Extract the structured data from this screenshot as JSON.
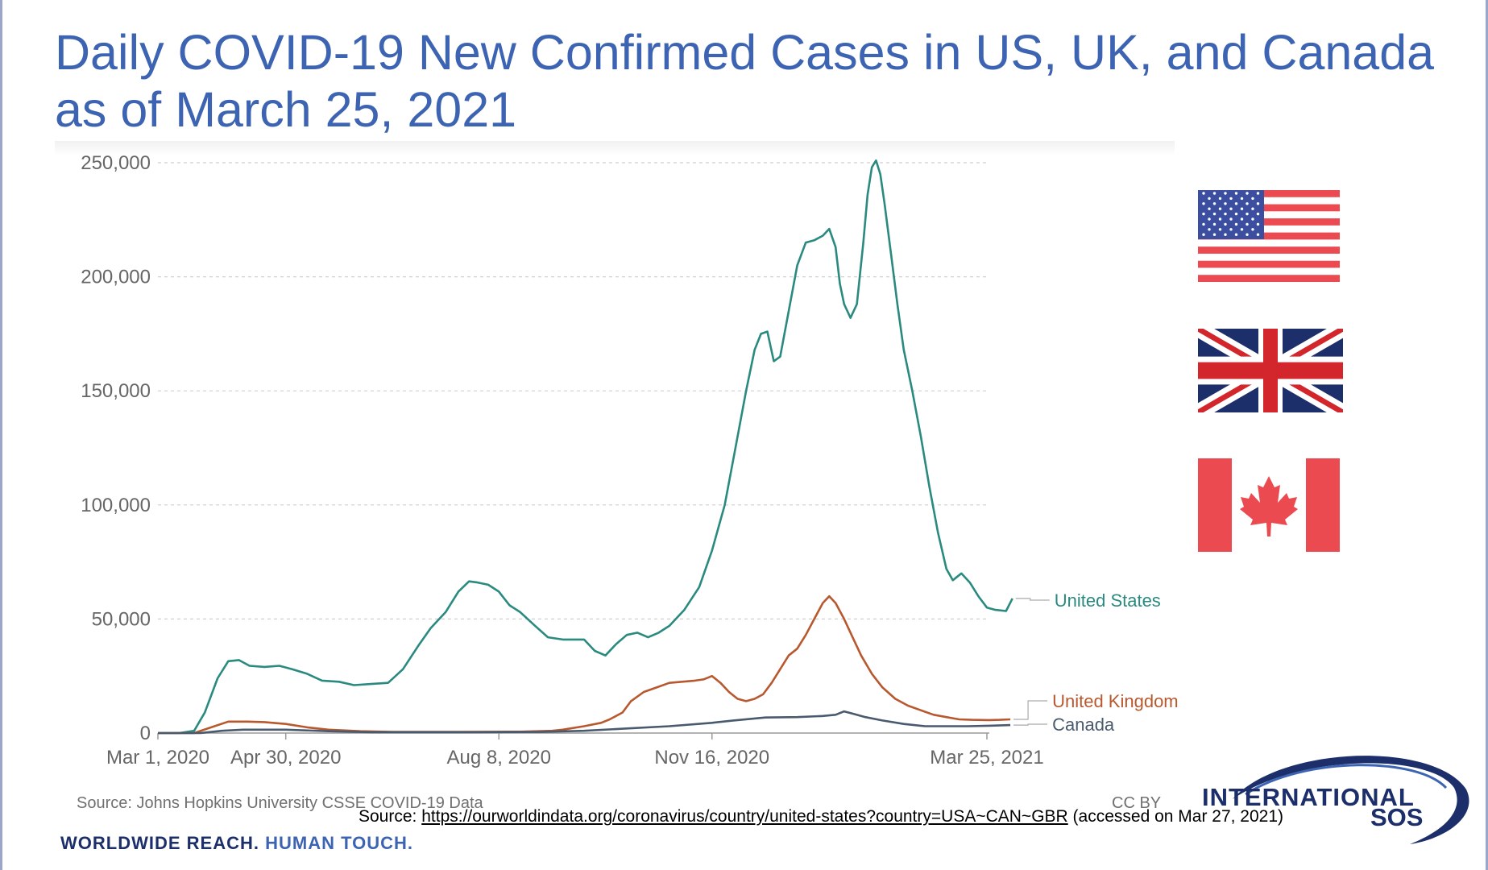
{
  "title": {
    "line1": "Daily COVID-19 New Confirmed Cases in US, UK, and Canada",
    "line2": "as of March 25, 2021"
  },
  "chart_data": {
    "type": "line",
    "ylim": [
      0,
      250000
    ],
    "yticks": [
      0,
      50000,
      100000,
      150000,
      200000,
      250000
    ],
    "ytick_labels": [
      "0",
      "50,000",
      "100,000",
      "150,000",
      "200,000",
      "250,000"
    ],
    "xticks": [
      {
        "label": "Mar 1, 2020",
        "day": 0
      },
      {
        "label": "Apr 30, 2020",
        "day": 60
      },
      {
        "label": "Aug 8, 2020",
        "day": 160
      },
      {
        "label": "Nov 16, 2020",
        "day": 260
      },
      {
        "label": "Mar 25, 2021",
        "day": 389
      }
    ],
    "grid": true,
    "source_text": "Source: Johns Hopkins University CSSE COVID-19 Data",
    "license_text": "CC BY",
    "series": [
      {
        "name": "United States",
        "color": "#2a8a7f",
        "points": [
          [
            0,
            0
          ],
          [
            10,
            0
          ],
          [
            17,
            1000
          ],
          [
            22,
            9000
          ],
          [
            28,
            24000
          ],
          [
            33,
            31500
          ],
          [
            38,
            32000
          ],
          [
            43,
            29500
          ],
          [
            50,
            29000
          ],
          [
            57,
            29500
          ],
          [
            63,
            28000
          ],
          [
            70,
            26000
          ],
          [
            77,
            23000
          ],
          [
            85,
            22500
          ],
          [
            92,
            21000
          ],
          [
            100,
            21500
          ],
          [
            108,
            22000
          ],
          [
            115,
            28000
          ],
          [
            122,
            38000
          ],
          [
            128,
            46000
          ],
          [
            135,
            53000
          ],
          [
            141,
            62000
          ],
          [
            146,
            66500
          ],
          [
            150,
            66000
          ],
          [
            155,
            65000
          ],
          [
            160,
            62000
          ],
          [
            165,
            56000
          ],
          [
            170,
            53000
          ],
          [
            177,
            47000
          ],
          [
            183,
            42000
          ],
          [
            190,
            41000
          ],
          [
            197,
            41000
          ],
          [
            200,
            41000
          ],
          [
            205,
            36000
          ],
          [
            210,
            34000
          ],
          [
            215,
            39000
          ],
          [
            220,
            43000
          ],
          [
            225,
            44000
          ],
          [
            230,
            42000
          ],
          [
            235,
            44000
          ],
          [
            240,
            47000
          ],
          [
            247,
            54000
          ],
          [
            254,
            64000
          ],
          [
            260,
            80000
          ],
          [
            266,
            100000
          ],
          [
            271,
            125000
          ],
          [
            276,
            150000
          ],
          [
            280,
            168000
          ],
          [
            283,
            175000
          ],
          [
            286,
            176000
          ],
          [
            289,
            163000
          ],
          [
            292,
            165000
          ],
          [
            296,
            185000
          ],
          [
            300,
            205000
          ],
          [
            304,
            215000
          ],
          [
            308,
            216000
          ],
          [
            312,
            218000
          ],
          [
            315,
            221000
          ],
          [
            318,
            213000
          ],
          [
            320,
            197000
          ],
          [
            322,
            188000
          ],
          [
            325,
            182000
          ],
          [
            328,
            188000
          ],
          [
            331,
            215000
          ],
          [
            333,
            236000
          ],
          [
            335,
            248000
          ],
          [
            337,
            251000
          ],
          [
            339,
            245000
          ],
          [
            341,
            232000
          ],
          [
            344,
            210000
          ],
          [
            347,
            188000
          ],
          [
            350,
            168000
          ],
          [
            354,
            150000
          ],
          [
            358,
            130000
          ],
          [
            362,
            108000
          ],
          [
            366,
            88000
          ],
          [
            370,
            72000
          ],
          [
            373,
            67000
          ],
          [
            377,
            70000
          ],
          [
            381,
            66000
          ],
          [
            385,
            60000
          ],
          [
            389,
            55000
          ],
          [
            393,
            54000
          ],
          [
            398,
            53500
          ],
          [
            401,
            59000
          ]
        ]
      },
      {
        "name": "United Kingdom",
        "color": "#b8582e",
        "points": [
          [
            0,
            0
          ],
          [
            17,
            0
          ],
          [
            25,
            2500
          ],
          [
            33,
            5000
          ],
          [
            42,
            5000
          ],
          [
            50,
            4800
          ],
          [
            60,
            4000
          ],
          [
            70,
            2500
          ],
          [
            80,
            1500
          ],
          [
            95,
            800
          ],
          [
            110,
            500
          ],
          [
            140,
            500
          ],
          [
            170,
            600
          ],
          [
            185,
            1000
          ],
          [
            190,
            1500
          ],
          [
            200,
            3000
          ],
          [
            208,
            4500
          ],
          [
            212,
            6000
          ],
          [
            218,
            9000
          ],
          [
            222,
            14000
          ],
          [
            228,
            18000
          ],
          [
            234,
            20000
          ],
          [
            240,
            22000
          ],
          [
            246,
            22500
          ],
          [
            252,
            23000
          ],
          [
            256,
            23500
          ],
          [
            260,
            25000
          ],
          [
            264,
            22000
          ],
          [
            268,
            18000
          ],
          [
            272,
            15000
          ],
          [
            276,
            14000
          ],
          [
            280,
            15000
          ],
          [
            284,
            17000
          ],
          [
            288,
            22000
          ],
          [
            292,
            28000
          ],
          [
            296,
            34000
          ],
          [
            300,
            37000
          ],
          [
            304,
            43000
          ],
          [
            308,
            50000
          ],
          [
            312,
            57000
          ],
          [
            315,
            60000
          ],
          [
            318,
            57000
          ],
          [
            322,
            50000
          ],
          [
            326,
            42000
          ],
          [
            330,
            34000
          ],
          [
            335,
            26000
          ],
          [
            340,
            20000
          ],
          [
            346,
            15000
          ],
          [
            352,
            12000
          ],
          [
            358,
            10000
          ],
          [
            364,
            8000
          ],
          [
            370,
            7000
          ],
          [
            376,
            6000
          ],
          [
            382,
            5800
          ],
          [
            390,
            5700
          ],
          [
            395,
            5800
          ],
          [
            400,
            6000
          ]
        ]
      },
      {
        "name": "Canada",
        "color": "#4a5a6e",
        "points": [
          [
            0,
            0
          ],
          [
            20,
            0
          ],
          [
            30,
            1000
          ],
          [
            40,
            1500
          ],
          [
            60,
            1500
          ],
          [
            80,
            800
          ],
          [
            100,
            400
          ],
          [
            150,
            400
          ],
          [
            180,
            500
          ],
          [
            200,
            1000
          ],
          [
            220,
            2000
          ],
          [
            240,
            3000
          ],
          [
            260,
            4500
          ],
          [
            270,
            5500
          ],
          [
            285,
            6800
          ],
          [
            300,
            7000
          ],
          [
            312,
            7500
          ],
          [
            318,
            8000
          ],
          [
            322,
            9500
          ],
          [
            326,
            8500
          ],
          [
            332,
            7000
          ],
          [
            340,
            5500
          ],
          [
            350,
            4000
          ],
          [
            360,
            3000
          ],
          [
            370,
            3000
          ],
          [
            380,
            3000
          ],
          [
            390,
            3200
          ],
          [
            400,
            3500
          ]
        ]
      }
    ]
  },
  "flags": {
    "us": {
      "icon": "us-flag-icon",
      "colors": {
        "red": "#ea4a50",
        "blue": "#3c4ea0",
        "white": "#ffffff"
      }
    },
    "uk": {
      "icon": "uk-flag-icon",
      "colors": {
        "red": "#d3262c",
        "blue": "#1c2f6b",
        "white": "#ffffff"
      }
    },
    "canada": {
      "icon": "canada-flag-icon",
      "colors": {
        "red": "#eb4b50",
        "white": "#ffffff"
      }
    }
  },
  "footer": {
    "source_prefix": "Source: ",
    "source_url": "https://ourworldindata.org/coronavirus/country/united-states?country=USA~CAN~GBR",
    "source_suffix": " (accessed on Mar 27, 2021)",
    "tagline_part1": "WORLDWIDE REACH. ",
    "tagline_part2": "HUMAN TOUCH."
  },
  "logo": {
    "line1": "INTERNATIONAL",
    "line2": "SOS",
    "color": "#1c2f6b"
  }
}
